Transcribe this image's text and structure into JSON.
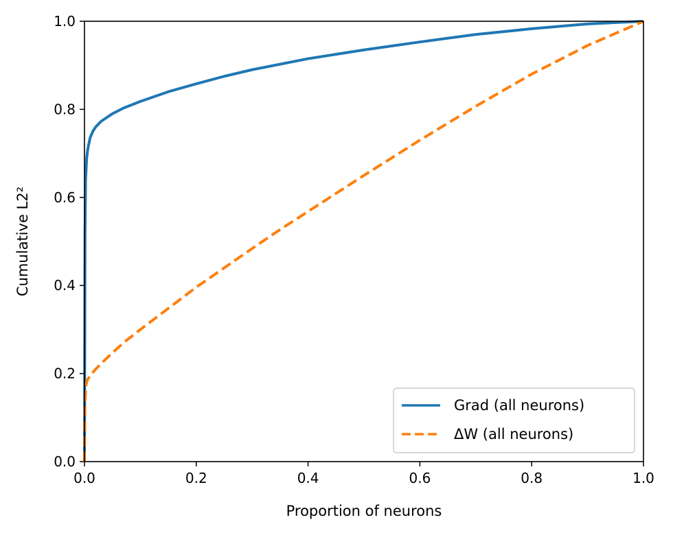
{
  "chart_data": {
    "type": "line",
    "title": "",
    "xlabel": "Proportion of neurons",
    "ylabel": "Cumulative L2²",
    "xlim": [
      0,
      1
    ],
    "ylim": [
      0,
      1
    ],
    "xticks": [
      "0.0",
      "0.2",
      "0.4",
      "0.6",
      "0.8",
      "1.0"
    ],
    "yticks": [
      "0.0",
      "0.2",
      "0.4",
      "0.6",
      "0.8",
      "1.0"
    ],
    "grid": false,
    "legend": {
      "position": "lower-right"
    },
    "series": [
      {
        "name": "Grad (all neurons)",
        "color": "#1f77b4",
        "style": "solid",
        "x": [
          0,
          0.001,
          0.002,
          0.004,
          0.006,
          0.01,
          0.015,
          0.02,
          0.03,
          0.05,
          0.07,
          0.1,
          0.15,
          0.2,
          0.25,
          0.3,
          0.4,
          0.5,
          0.6,
          0.7,
          0.8,
          0.9,
          1.0
        ],
        "y": [
          0,
          0.52,
          0.64,
          0.69,
          0.71,
          0.735,
          0.75,
          0.76,
          0.773,
          0.79,
          0.803,
          0.818,
          0.84,
          0.858,
          0.875,
          0.89,
          0.915,
          0.935,
          0.953,
          0.97,
          0.983,
          0.994,
          1.0
        ]
      },
      {
        "name": "ΔW (all neurons)",
        "color": "#ff7f0e",
        "style": "dashed",
        "x": [
          0,
          0.001,
          0.003,
          0.005,
          0.01,
          0.02,
          0.03,
          0.05,
          0.07,
          0.1,
          0.15,
          0.2,
          0.25,
          0.3,
          0.35,
          0.4,
          0.5,
          0.6,
          0.7,
          0.8,
          0.9,
          1.0
        ],
        "y": [
          0,
          0.14,
          0.175,
          0.185,
          0.195,
          0.21,
          0.223,
          0.247,
          0.27,
          0.3,
          0.348,
          0.396,
          0.44,
          0.484,
          0.527,
          0.568,
          0.65,
          0.73,
          0.807,
          0.88,
          0.945,
          1.0
        ]
      }
    ]
  }
}
